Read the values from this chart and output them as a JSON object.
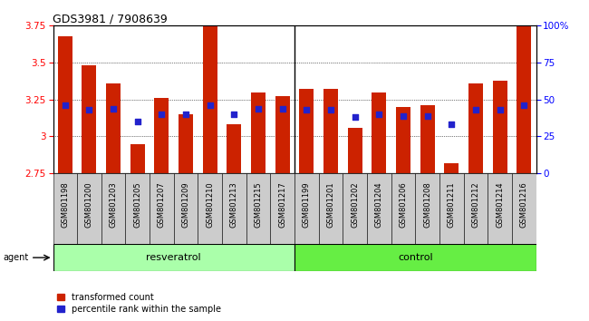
{
  "title": "GDS3981 / 7908639",
  "samples": [
    "GSM801198",
    "GSM801200",
    "GSM801203",
    "GSM801205",
    "GSM801207",
    "GSM801209",
    "GSM801210",
    "GSM801213",
    "GSM801215",
    "GSM801217",
    "GSM801199",
    "GSM801201",
    "GSM801202",
    "GSM801204",
    "GSM801206",
    "GSM801208",
    "GSM801211",
    "GSM801212",
    "GSM801214",
    "GSM801216"
  ],
  "transformed_count": [
    3.68,
    3.48,
    3.36,
    2.95,
    3.26,
    3.15,
    3.83,
    3.08,
    3.3,
    3.27,
    3.32,
    3.32,
    3.06,
    3.3,
    3.2,
    3.21,
    2.82,
    3.36,
    3.38,
    3.84
  ],
  "percentile_rank": [
    46,
    43,
    44,
    35,
    40,
    40,
    46,
    40,
    44,
    44,
    43,
    43,
    38,
    40,
    39,
    39,
    33,
    43,
    43,
    46
  ],
  "ylim_left": [
    2.75,
    3.75
  ],
  "ylim_right": [
    0,
    100
  ],
  "bar_color": "#cc2200",
  "dot_color": "#2222cc",
  "resveratrol_color": "#aaffaa",
  "control_color": "#66ee44",
  "bar_width": 0.6,
  "baseline": 2.75,
  "n_resveratrol": 10
}
